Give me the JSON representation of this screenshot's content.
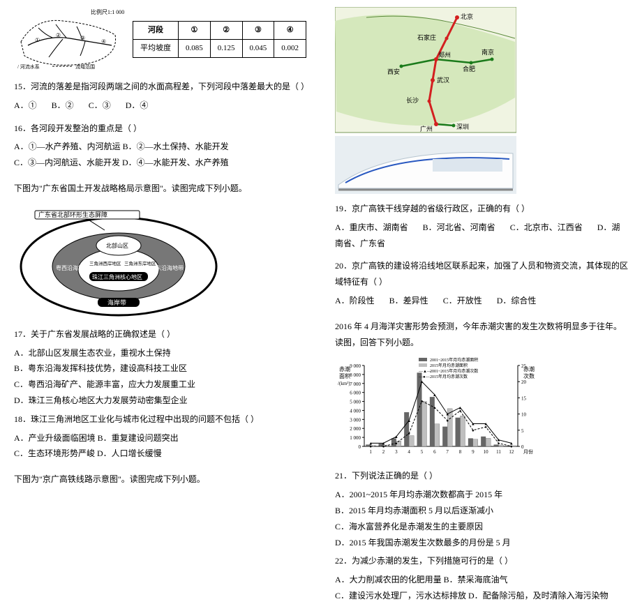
{
  "left": {
    "map_scale": "比例尺1:1 000 000",
    "map_legend1": "/ 河流水系",
    "map_legend2": "流域范围",
    "gradient_table": {
      "headers": [
        "河段",
        "①",
        "②",
        "③",
        "④"
      ],
      "row_label": "平均坡度",
      "values": [
        "0.085",
        "0.125",
        "0.045",
        "0.002"
      ]
    },
    "q15": "15．河流的落差是指河段两端之间的水面高程差，下列河段中落差最大的是（    ）",
    "q15_opts": [
      "A．①",
      "B．②",
      "C．③",
      "D．④"
    ],
    "q16": "16．各河段开发整治的重点是（    ）",
    "q16_opts": [
      "A．①—水产养殖、内河航运    B．②—水土保持、水能开发",
      "C．③—内河航运、水能开发    D．④—水能开发、水产养殖"
    ],
    "fig2_caption": "下图为\"广东省国土开发战略格局示意图\"。读图完成下列小题。",
    "oval_labels": {
      "top": "广东省北部环形生态屏障",
      "north": "北部山区",
      "west": "粤西沿海地带",
      "east": "粤东沿海地带",
      "center": "珠江三角洲核心地区",
      "bottom": "海岸带",
      "cw": "三角洲西岸地区",
      "ce": "三角洲东岸地区"
    },
    "q17": "17．关于广东省发展战略的正确叙述是（    ）",
    "q17_opts": [
      "A．北部山区发展生态农业，重视水土保持",
      "B．粤东沿海发挥科技优势，建设高科技工业区",
      "C．粤西沿海矿产、能源丰富，应大力发展重工业",
      "D．珠江三角核心地区大力发展劳动密集型企业"
    ],
    "q18": "18．珠江三角洲地区工业化与城市化过程中出现的问题不包括（    ）",
    "q18_opts": [
      "A．产业升级面临困境    B．重复建设问题突出",
      "C．生态环境形势严峻    D．人口增长缓慢"
    ],
    "fig3_caption": "下图为\"京广高铁线路示意图\"。读图完成下列小题。"
  },
  "right": {
    "rail_cities": {
      "beijing": "北京",
      "shijiazhuang": "石家庄",
      "zhengzhou": "郑州",
      "xian": "西安",
      "hefei": "合肥",
      "nanjing": "南京",
      "wuhan": "武汉",
      "changsha": "长沙",
      "guangzhou": "广州",
      "shenzhen": "深圳"
    },
    "q19": "19．京广高铁干线穿越的省级行政区，正确的有（    ）",
    "q19_opts": [
      "A．重庆市、湖南省",
      "B．河北省、河南省",
      "C．北京市、江西省",
      "D．湖南省、广东省"
    ],
    "q20": "20．京广高铁的建设将沿线地区联系起来，加强了人员和物资交流，其体现的区域特征有（    ）",
    "q20_opts": [
      "A．阶段性",
      "B．差异性",
      "C．开放性",
      "D．综合性"
    ],
    "fig4_caption": "2016 年 4 月海洋灾害形势会预测，今年赤潮灾害的发生次数将明显多于往年。读图，回答下列小题。",
    "chart": {
      "y_left_label": "赤潮面积/(km²)",
      "y_right_label": "赤潮次数",
      "x_label": "月份",
      "x_ticks": [
        "1",
        "2",
        "3",
        "4",
        "5",
        "6",
        "7",
        "8",
        "9",
        "10",
        "11",
        "12"
      ],
      "y_left_ticks": [
        0,
        1000,
        2000,
        3000,
        4000,
        5000,
        6000,
        7000,
        8000,
        9000
      ],
      "y_right_ticks": [
        0,
        5,
        10,
        15,
        20,
        25
      ],
      "legend": [
        "2001~2015年月均赤潮面积",
        "2015年月均赤潮面积",
        "2001~2015年月均赤潮次数",
        "2015年月均赤潮次数"
      ],
      "series_area_avg": [
        200,
        300,
        900,
        3800,
        8200,
        5500,
        2200,
        3200,
        900,
        1100,
        200,
        100
      ],
      "series_area_2015": [
        100,
        150,
        600,
        1200,
        5000,
        2500,
        4200,
        3400,
        800,
        900,
        150,
        80
      ],
      "series_cnt_avg": [
        1,
        1,
        3,
        8,
        20,
        16,
        10,
        12,
        7,
        7,
        2,
        1
      ],
      "series_cnt_2015": [
        0,
        0,
        1,
        4,
        14,
        12,
        8,
        11,
        5,
        6,
        1,
        0
      ],
      "colors": {
        "bar_avg": "#666666",
        "bar_2015": "#bfbfbf",
        "line_avg": "#000000",
        "line_2015": "#000000",
        "grid": "#888888",
        "bg": "#ffffff"
      },
      "marker_avg": "▲",
      "marker_2015": "●"
    },
    "q21": "21．下列说法正确的是（    ）",
    "q21_opts": [
      "A．2001~2015 年月均赤潮次数都高于 2015 年",
      "B．2015 年月均赤潮面积 5 月以后逐渐减小",
      "C．海水富营养化是赤潮发生的主要原因",
      "D．2015 年我国赤潮发生次数最多的月份是 5 月"
    ],
    "q22": "22．为减少赤潮的发生，下列措施可行的是（    ）",
    "q22_opts": [
      "A．大力削减农田的化肥用量    B．禁采海底油气",
      "C．建设污水处理厂，污水达标排放    D．配备除污船，及时清除入海污染物"
    ]
  }
}
